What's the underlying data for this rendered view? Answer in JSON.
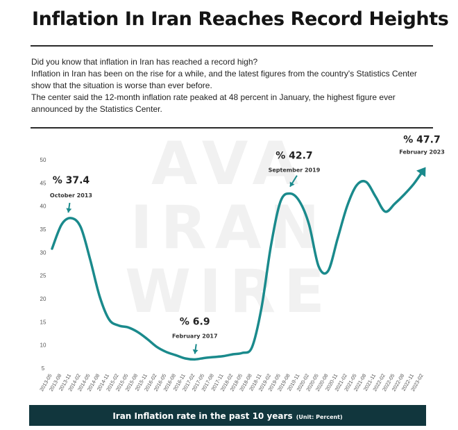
{
  "title": "Inflation In Iran Reaches Record Heights",
  "intro": [
    "Did you know that inflation in Iran has reached a record high?",
    "Inflation in Iran has been on the rise for a while, and the latest figures from the country's Statistics Center show that the situation is worse than ever before.",
    "The center said the 12-month inflation rate peaked at 48 percent in January, the highest figure ever announced by the Statistics Center."
  ],
  "watermark": [
    "AVA",
    "IRAN",
    "WIRE"
  ],
  "footer": {
    "label": "Iran Inflation rate in the past 10 years",
    "unit": "(Unit: Percent)"
  },
  "colors": {
    "line": "#1a8a8c",
    "footer_bg": "#11363d",
    "axis_text": "#555555"
  },
  "chart_data": {
    "type": "line",
    "title": "Iran Inflation rate in the past 10 years",
    "ylabel": "",
    "xlabel": "",
    "y_ticks": [
      5,
      10,
      15,
      20,
      25,
      30,
      35,
      40,
      45,
      50
    ],
    "ylim": [
      5,
      50
    ],
    "grid": false,
    "x": [
      "2013-05",
      "2013-08",
      "2013-11",
      "2014-02",
      "2014-05",
      "2014-08",
      "2014-11",
      "2015-02",
      "2015-05",
      "2015-08",
      "2015-11",
      "2016-02",
      "2016-05",
      "2016-08",
      "2016-11",
      "2017-02",
      "2017-05",
      "2017-08",
      "2017-11",
      "2018-02",
      "2018-05",
      "2018-08",
      "2018-11",
      "2019-02",
      "2019-05",
      "2019-08",
      "2019-11",
      "2020-02",
      "2020-05",
      "2020-08",
      "2020-11",
      "2021-02",
      "2021-05",
      "2021-08",
      "2021-11",
      "2022-02",
      "2022-05",
      "2022-08",
      "2022-11",
      "2023-02"
    ],
    "series": [
      {
        "values": [
          30.8,
          36.0,
          37.4,
          35.5,
          28.5,
          20.5,
          15.5,
          14.2,
          13.8,
          12.8,
          11.3,
          9.6,
          8.5,
          7.8,
          7.1,
          6.9,
          7.2,
          7.4,
          7.6,
          8.0,
          8.3,
          9.5,
          18.0,
          31.5,
          41.0,
          42.7,
          41.0,
          36.0,
          27.0,
          26.0,
          33.0,
          40.0,
          44.5,
          45.2,
          42.0,
          38.8,
          40.5,
          42.5,
          44.8,
          47.7
        ]
      }
    ],
    "annotations": [
      {
        "value_label": "% 37.4",
        "date_label": "October 2013",
        "x": "2013-11",
        "y": 37.4
      },
      {
        "value_label": "% 6.9",
        "date_label": "February 2017",
        "x": "2017-02",
        "y": 6.9
      },
      {
        "value_label": "% 42.7",
        "date_label": "September 2019",
        "x": "2019-08",
        "y": 42.7
      },
      {
        "value_label": "% 47.7",
        "date_label": "February 2023",
        "x": "2023-02",
        "y": 47.7
      }
    ]
  }
}
